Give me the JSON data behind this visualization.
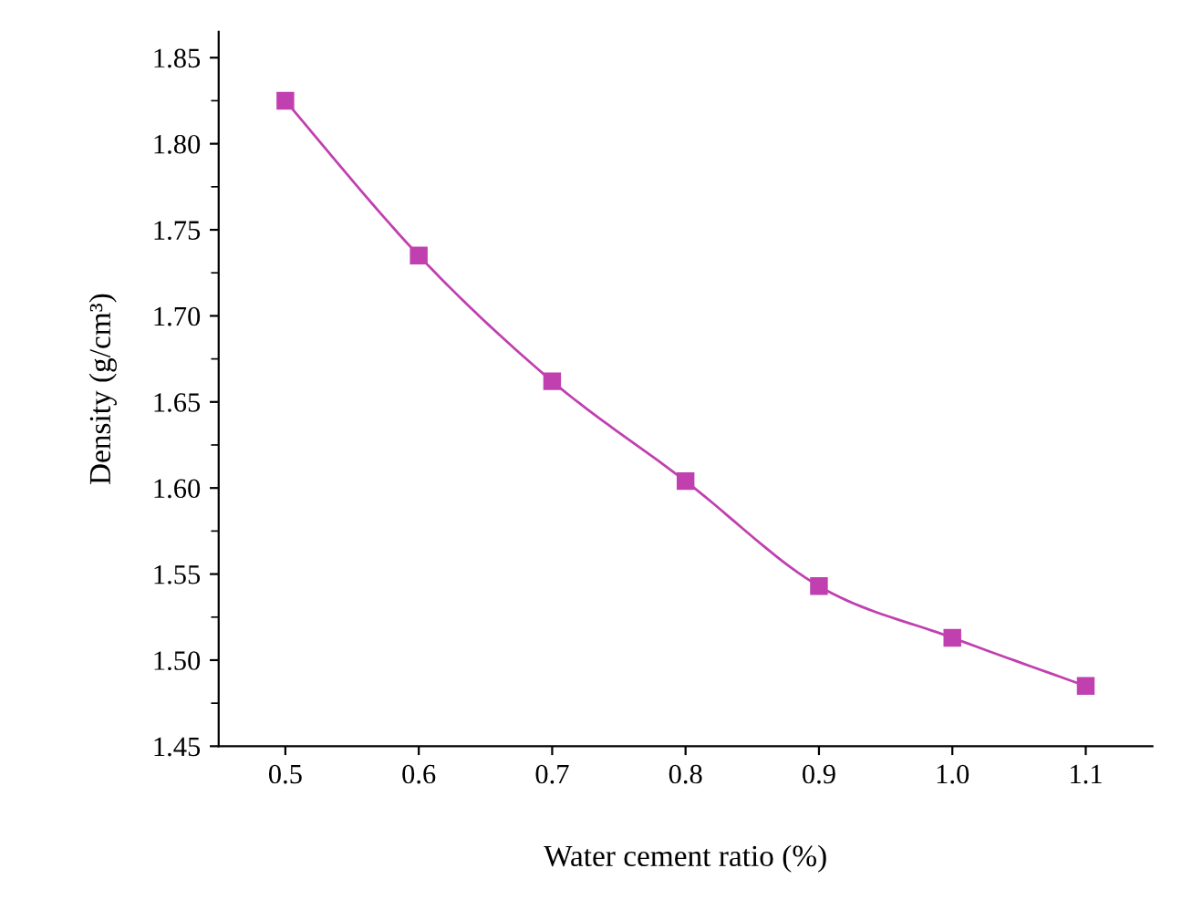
{
  "chart_data": {
    "type": "line",
    "xlabel": "Water cement ratio (%)",
    "ylabel": "Density (g/cm³)",
    "x": [
      0.5,
      0.6,
      0.7,
      0.8,
      0.9,
      1.0,
      1.1
    ],
    "series": [
      {
        "color": "#c040b0",
        "values": [
          1.825,
          1.735,
          1.662,
          1.604,
          1.543,
          1.513,
          1.485
        ]
      }
    ],
    "xlim": [
      0.45,
      1.15
    ],
    "xticks": [
      {
        "value": 0.5,
        "label": "0.5"
      },
      {
        "value": 0.6,
        "label": "0.6"
      },
      {
        "value": 0.7,
        "label": "0.7"
      },
      {
        "value": 0.8,
        "label": "0.8"
      },
      {
        "value": 0.9,
        "label": "0.9"
      },
      {
        "value": 1.0,
        "label": "1.0"
      },
      {
        "value": 1.1,
        "label": "1.1"
      }
    ],
    "ylim": [
      1.45,
      1.865
    ],
    "yticks": [
      {
        "value": 1.45,
        "label": "1.45"
      },
      {
        "value": 1.5,
        "label": "1.50"
      },
      {
        "value": 1.55,
        "label": "1.55"
      },
      {
        "value": 1.6,
        "label": "1.60"
      },
      {
        "value": 1.65,
        "label": "1.65"
      },
      {
        "value": 1.7,
        "label": "1.70"
      },
      {
        "value": 1.75,
        "label": "1.75"
      },
      {
        "value": 1.8,
        "label": "1.80"
      },
      {
        "value": 1.85,
        "label": "1.85"
      }
    ],
    "marker": "square",
    "line_style": "solid",
    "grid": false,
    "legend": false
  }
}
